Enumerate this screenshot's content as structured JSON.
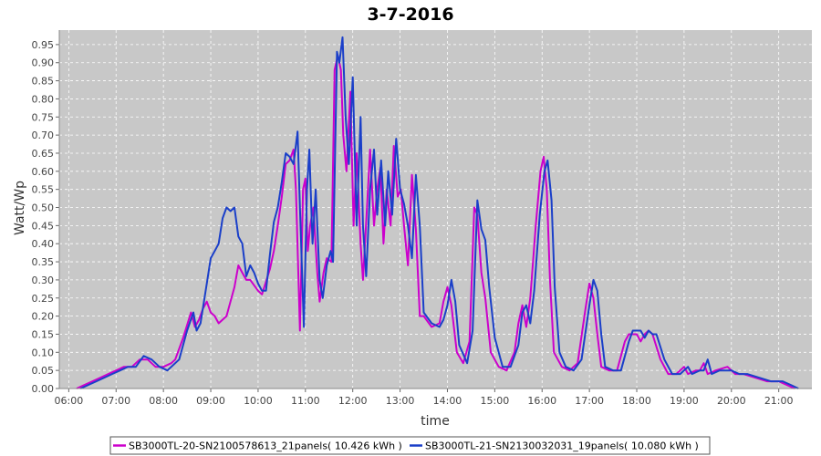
{
  "chart_data": {
    "type": "line",
    "title": "3-7-2016",
    "xlabel": "time",
    "ylabel": "Watt/Wp",
    "x_ticks": [
      "06:00",
      "07:00",
      "08:00",
      "09:00",
      "10:00",
      "11:00",
      "12:00",
      "13:00",
      "14:00",
      "15:00",
      "16:00",
      "17:00",
      "18:00",
      "19:00",
      "20:00",
      "21:00"
    ],
    "y_ticks": [
      "0.00",
      "0.05",
      "0.10",
      "0.15",
      "0.20",
      "0.25",
      "0.30",
      "0.35",
      "0.40",
      "0.45",
      "0.50",
      "0.55",
      "0.60",
      "0.65",
      "0.70",
      "0.75",
      "0.80",
      "0.85",
      "0.90",
      "0.95"
    ],
    "xlim": [
      "05:48",
      "21:42"
    ],
    "ylim": [
      0,
      0.99
    ],
    "grid": true,
    "legend_position": "bottom",
    "colors": {
      "plot_bg": "#c8c8c8",
      "grid": "#ffffff"
    },
    "series": [
      {
        "name": "SB3000TL-20-SN2100578613_21panels( 10.426 kWh )",
        "color": "#cc00cc",
        "points": [
          [
            "06:10",
            0.0
          ],
          [
            "06:20",
            0.01
          ],
          [
            "06:30",
            0.02
          ],
          [
            "06:40",
            0.03
          ],
          [
            "06:50",
            0.04
          ],
          [
            "07:00",
            0.05
          ],
          [
            "07:10",
            0.06
          ],
          [
            "07:20",
            0.06
          ],
          [
            "07:30",
            0.08
          ],
          [
            "07:40",
            0.08
          ],
          [
            "07:50",
            0.06
          ],
          [
            "08:00",
            0.06
          ],
          [
            "08:10",
            0.07
          ],
          [
            "08:15",
            0.08
          ],
          [
            "08:25",
            0.14
          ],
          [
            "08:35",
            0.21
          ],
          [
            "08:40",
            0.17
          ],
          [
            "08:45",
            0.19
          ],
          [
            "08:50",
            0.22
          ],
          [
            "08:55",
            0.24
          ],
          [
            "09:00",
            0.21
          ],
          [
            "09:05",
            0.2
          ],
          [
            "09:10",
            0.18
          ],
          [
            "09:20",
            0.2
          ],
          [
            "09:30",
            0.28
          ],
          [
            "09:35",
            0.34
          ],
          [
            "09:40",
            0.32
          ],
          [
            "09:45",
            0.3
          ],
          [
            "09:50",
            0.3
          ],
          [
            "10:00",
            0.27
          ],
          [
            "10:05",
            0.26
          ],
          [
            "10:15",
            0.33
          ],
          [
            "10:20",
            0.38
          ],
          [
            "10:25",
            0.45
          ],
          [
            "10:30",
            0.53
          ],
          [
            "10:35",
            0.62
          ],
          [
            "10:40",
            0.63
          ],
          [
            "10:45",
            0.66
          ],
          [
            "10:48",
            0.55
          ],
          [
            "10:53",
            0.16
          ],
          [
            "10:57",
            0.55
          ],
          [
            "11:00",
            0.58
          ],
          [
            "11:03",
            0.38
          ],
          [
            "11:06",
            0.45
          ],
          [
            "11:10",
            0.5
          ],
          [
            "11:15",
            0.32
          ],
          [
            "11:18",
            0.24
          ],
          [
            "11:23",
            0.32
          ],
          [
            "11:27",
            0.36
          ],
          [
            "11:33",
            0.35
          ],
          [
            "11:37",
            0.88
          ],
          [
            "11:41",
            0.92
          ],
          [
            "11:45",
            0.88
          ],
          [
            "11:48",
            0.7
          ],
          [
            "11:52",
            0.6
          ],
          [
            "11:57",
            0.82
          ],
          [
            "12:01",
            0.45
          ],
          [
            "12:05",
            0.65
          ],
          [
            "12:10",
            0.4
          ],
          [
            "12:13",
            0.3
          ],
          [
            "12:18",
            0.5
          ],
          [
            "12:22",
            0.66
          ],
          [
            "12:27",
            0.45
          ],
          [
            "12:31",
            0.55
          ],
          [
            "12:35",
            0.61
          ],
          [
            "12:39",
            0.4
          ],
          [
            "12:43",
            0.55
          ],
          [
            "12:48",
            0.45
          ],
          [
            "12:52",
            0.67
          ],
          [
            "12:57",
            0.53
          ],
          [
            "13:01",
            0.55
          ],
          [
            "13:05",
            0.45
          ],
          [
            "13:10",
            0.34
          ],
          [
            "13:15",
            0.59
          ],
          [
            "13:20",
            0.44
          ],
          [
            "13:25",
            0.2
          ],
          [
            "13:30",
            0.2
          ],
          [
            "13:40",
            0.17
          ],
          [
            "13:50",
            0.18
          ],
          [
            "13:55",
            0.24
          ],
          [
            "14:00",
            0.28
          ],
          [
            "14:05",
            0.23
          ],
          [
            "14:12",
            0.1
          ],
          [
            "14:20",
            0.07
          ],
          [
            "14:28",
            0.13
          ],
          [
            "14:34",
            0.5
          ],
          [
            "14:38",
            0.48
          ],
          [
            "14:43",
            0.32
          ],
          [
            "14:48",
            0.25
          ],
          [
            "14:55",
            0.1
          ],
          [
            "15:05",
            0.06
          ],
          [
            "15:15",
            0.05
          ],
          [
            "15:25",
            0.1
          ],
          [
            "15:30",
            0.18
          ],
          [
            "15:35",
            0.23
          ],
          [
            "15:40",
            0.17
          ],
          [
            "15:45",
            0.25
          ],
          [
            "15:52",
            0.45
          ],
          [
            "15:58",
            0.6
          ],
          [
            "16:02",
            0.64
          ],
          [
            "16:06",
            0.55
          ],
          [
            "16:10",
            0.3
          ],
          [
            "16:15",
            0.1
          ],
          [
            "16:25",
            0.06
          ],
          [
            "16:35",
            0.05
          ],
          [
            "16:45",
            0.07
          ],
          [
            "16:55",
            0.22
          ],
          [
            "17:00",
            0.29
          ],
          [
            "17:05",
            0.25
          ],
          [
            "17:10",
            0.15
          ],
          [
            "17:15",
            0.06
          ],
          [
            "17:25",
            0.05
          ],
          [
            "17:35",
            0.05
          ],
          [
            "17:45",
            0.13
          ],
          [
            "17:50",
            0.15
          ],
          [
            "18:00",
            0.15
          ],
          [
            "18:05",
            0.13
          ],
          [
            "18:10",
            0.15
          ],
          [
            "18:15",
            0.16
          ],
          [
            "18:20",
            0.15
          ],
          [
            "18:30",
            0.08
          ],
          [
            "18:40",
            0.04
          ],
          [
            "18:50",
            0.04
          ],
          [
            "19:00",
            0.06
          ],
          [
            "19:05",
            0.04
          ],
          [
            "19:15",
            0.05
          ],
          [
            "19:20",
            0.05
          ],
          [
            "19:25",
            0.07
          ],
          [
            "19:30",
            0.04
          ],
          [
            "19:40",
            0.05
          ],
          [
            "19:55",
            0.06
          ],
          [
            "20:05",
            0.04
          ],
          [
            "20:15",
            0.04
          ],
          [
            "20:30",
            0.03
          ],
          [
            "20:45",
            0.02
          ],
          [
            "21:00",
            0.02
          ],
          [
            "21:10",
            0.01
          ],
          [
            "21:20",
            0.0
          ]
        ]
      },
      {
        "name": "SB3000TL-21-SN2130032031_19panels( 10.080 kWh )",
        "color": "#1a3fc9",
        "points": [
          [
            "06:15",
            0.0
          ],
          [
            "06:25",
            0.01
          ],
          [
            "06:35",
            0.02
          ],
          [
            "06:45",
            0.03
          ],
          [
            "06:55",
            0.04
          ],
          [
            "07:05",
            0.05
          ],
          [
            "07:15",
            0.06
          ],
          [
            "07:25",
            0.06
          ],
          [
            "07:35",
            0.09
          ],
          [
            "07:45",
            0.08
          ],
          [
            "07:55",
            0.06
          ],
          [
            "08:05",
            0.05
          ],
          [
            "08:15",
            0.07
          ],
          [
            "08:20",
            0.08
          ],
          [
            "08:30",
            0.16
          ],
          [
            "08:38",
            0.21
          ],
          [
            "08:42",
            0.16
          ],
          [
            "08:47",
            0.18
          ],
          [
            "08:55",
            0.29
          ],
          [
            "09:00",
            0.36
          ],
          [
            "09:05",
            0.38
          ],
          [
            "09:10",
            0.4
          ],
          [
            "09:15",
            0.47
          ],
          [
            "09:20",
            0.5
          ],
          [
            "09:25",
            0.49
          ],
          [
            "09:30",
            0.5
          ],
          [
            "09:35",
            0.42
          ],
          [
            "09:40",
            0.4
          ],
          [
            "09:45",
            0.31
          ],
          [
            "09:50",
            0.34
          ],
          [
            "09:55",
            0.32
          ],
          [
            "10:00",
            0.29
          ],
          [
            "10:05",
            0.27
          ],
          [
            "10:10",
            0.27
          ],
          [
            "10:15",
            0.37
          ],
          [
            "10:20",
            0.46
          ],
          [
            "10:25",
            0.5
          ],
          [
            "10:30",
            0.57
          ],
          [
            "10:35",
            0.65
          ],
          [
            "10:40",
            0.64
          ],
          [
            "10:45",
            0.62
          ],
          [
            "10:50",
            0.71
          ],
          [
            "10:53",
            0.5
          ],
          [
            "10:58",
            0.17
          ],
          [
            "11:02",
            0.55
          ],
          [
            "11:05",
            0.66
          ],
          [
            "11:09",
            0.4
          ],
          [
            "11:13",
            0.55
          ],
          [
            "11:18",
            0.3
          ],
          [
            "11:22",
            0.25
          ],
          [
            "11:27",
            0.34
          ],
          [
            "11:32",
            0.38
          ],
          [
            "11:35",
            0.35
          ],
          [
            "11:40",
            0.93
          ],
          [
            "11:43",
            0.9
          ],
          [
            "11:47",
            0.97
          ],
          [
            "11:51",
            0.75
          ],
          [
            "11:55",
            0.62
          ],
          [
            "12:00",
            0.86
          ],
          [
            "12:05",
            0.45
          ],
          [
            "12:10",
            0.75
          ],
          [
            "12:13",
            0.45
          ],
          [
            "12:17",
            0.31
          ],
          [
            "12:22",
            0.55
          ],
          [
            "12:27",
            0.66
          ],
          [
            "12:31",
            0.48
          ],
          [
            "12:36",
            0.63
          ],
          [
            "12:41",
            0.45
          ],
          [
            "12:45",
            0.6
          ],
          [
            "12:50",
            0.48
          ],
          [
            "12:55",
            0.69
          ],
          [
            "13:00",
            0.55
          ],
          [
            "13:05",
            0.51
          ],
          [
            "13:10",
            0.45
          ],
          [
            "13:15",
            0.36
          ],
          [
            "13:20",
            0.59
          ],
          [
            "13:25",
            0.45
          ],
          [
            "13:30",
            0.21
          ],
          [
            "13:40",
            0.18
          ],
          [
            "13:50",
            0.17
          ],
          [
            "13:55",
            0.19
          ],
          [
            "14:00",
            0.23
          ],
          [
            "14:05",
            0.3
          ],
          [
            "14:10",
            0.24
          ],
          [
            "14:15",
            0.12
          ],
          [
            "14:25",
            0.07
          ],
          [
            "14:32",
            0.16
          ],
          [
            "14:38",
            0.52
          ],
          [
            "14:43",
            0.44
          ],
          [
            "14:48",
            0.41
          ],
          [
            "14:53",
            0.28
          ],
          [
            "15:00",
            0.14
          ],
          [
            "15:10",
            0.06
          ],
          [
            "15:20",
            0.06
          ],
          [
            "15:30",
            0.12
          ],
          [
            "15:35",
            0.21
          ],
          [
            "15:40",
            0.23
          ],
          [
            "15:45",
            0.18
          ],
          [
            "15:50",
            0.27
          ],
          [
            "15:57",
            0.48
          ],
          [
            "16:03",
            0.6
          ],
          [
            "16:07",
            0.63
          ],
          [
            "16:12",
            0.52
          ],
          [
            "16:16",
            0.28
          ],
          [
            "16:22",
            0.1
          ],
          [
            "16:30",
            0.06
          ],
          [
            "16:40",
            0.05
          ],
          [
            "16:50",
            0.08
          ],
          [
            "17:00",
            0.23
          ],
          [
            "17:05",
            0.3
          ],
          [
            "17:10",
            0.27
          ],
          [
            "17:15",
            0.15
          ],
          [
            "17:20",
            0.06
          ],
          [
            "17:30",
            0.05
          ],
          [
            "17:40",
            0.05
          ],
          [
            "17:50",
            0.13
          ],
          [
            "17:55",
            0.16
          ],
          [
            "18:05",
            0.16
          ],
          [
            "18:10",
            0.14
          ],
          [
            "18:15",
            0.16
          ],
          [
            "18:20",
            0.15
          ],
          [
            "18:25",
            0.15
          ],
          [
            "18:35",
            0.08
          ],
          [
            "18:45",
            0.04
          ],
          [
            "18:55",
            0.04
          ],
          [
            "19:05",
            0.06
          ],
          [
            "19:10",
            0.04
          ],
          [
            "19:20",
            0.05
          ],
          [
            "19:25",
            0.05
          ],
          [
            "19:30",
            0.08
          ],
          [
            "19:35",
            0.04
          ],
          [
            "19:45",
            0.05
          ],
          [
            "20:00",
            0.05
          ],
          [
            "20:10",
            0.04
          ],
          [
            "20:20",
            0.04
          ],
          [
            "20:35",
            0.03
          ],
          [
            "20:50",
            0.02
          ],
          [
            "21:05",
            0.02
          ],
          [
            "21:15",
            0.01
          ],
          [
            "21:25",
            0.0
          ]
        ]
      }
    ]
  }
}
